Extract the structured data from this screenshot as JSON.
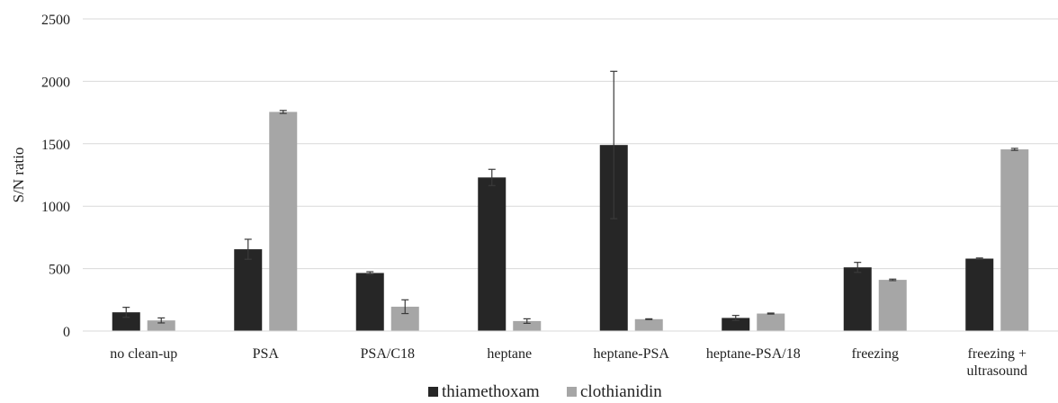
{
  "chart_data": {
    "type": "bar",
    "title": "",
    "xlabel": "",
    "ylabel": "S/N ratio",
    "ylim": [
      0,
      2500
    ],
    "yticks": [
      0,
      500,
      1000,
      1500,
      2000,
      2500
    ],
    "grid": true,
    "legend_position": "bottom",
    "categories": [
      [
        "no clean-up"
      ],
      [
        "PSA"
      ],
      [
        "PSA/C18"
      ],
      [
        "heptane"
      ],
      [
        "heptane-PSA"
      ],
      [
        "heptane-PSA/18"
      ],
      [
        "freezing"
      ],
      [
        "freezing +",
        "ultrasound"
      ]
    ],
    "series": [
      {
        "name": "thiamethoxam",
        "color": "#262626",
        "values": [
          150,
          655,
          465,
          1230,
          1490,
          105,
          510,
          580
        ],
        "errors": [
          40,
          80,
          10,
          65,
          590,
          20,
          40,
          5
        ]
      },
      {
        "name": "clothianidin",
        "color": "#a6a6a6",
        "values": [
          85,
          1755,
          195,
          80,
          95,
          140,
          410,
          1455
        ],
        "errors": [
          20,
          12,
          55,
          18,
          3,
          4,
          6,
          8
        ]
      }
    ]
  }
}
